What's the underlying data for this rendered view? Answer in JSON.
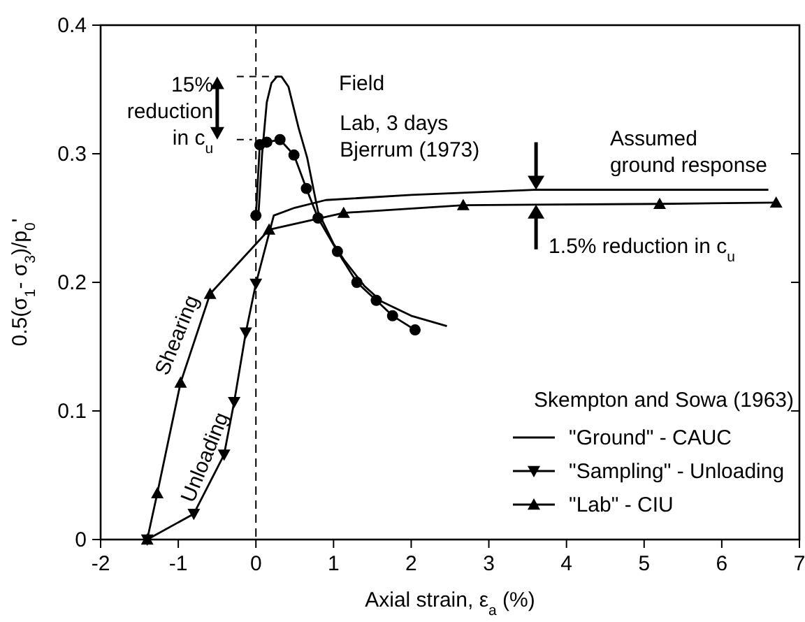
{
  "chart_data": {
    "type": "line",
    "xlabel": "Axial strain, ε$_{a}$ (%)",
    "ylabel": "0.5(σ$_{1}$- σ$_{3}$)/p$_{0}$'",
    "xlim": [
      -2,
      7
    ],
    "xticks": [
      -2,
      -1,
      0,
      1,
      2,
      3,
      4,
      5,
      6,
      7
    ],
    "ylim": [
      0,
      0.4
    ],
    "yticks": [
      0,
      0.1,
      0.2,
      0.3,
      0.4
    ],
    "grid": false,
    "legend": "bottom right",
    "legend_title": "Skempton and Sowa (1963)",
    "line_style": "solid",
    "series": [
      {
        "name": "\"Ground\" - CAUC",
        "color": "#000000",
        "marker": "none",
        "x": [
          0,
          0.23,
          0.5,
          0.9,
          2,
          3.6,
          6.6
        ],
        "values": [
          0.199,
          0.252,
          0.258,
          0.264,
          0.268,
          0.272,
          0.272
        ]
      },
      {
        "name": "\"Sampling\" - Unloading",
        "color": "#000000",
        "marker": "triangle-down",
        "x": [
          0,
          -0.13,
          -0.28,
          -0.41,
          -0.8,
          -1.4
        ],
        "values": [
          0.199,
          0.161,
          0.107,
          0.066,
          0.02,
          0
        ]
      },
      {
        "name": "\"Lab\" - CIU",
        "color": "#000000",
        "marker": "triangle",
        "x": [
          -1.4,
          -1.27,
          -0.97,
          -0.59,
          0.17,
          1.13,
          2.67,
          5.2,
          6.7
        ],
        "values": [
          0,
          0.036,
          0.122,
          0.191,
          0.241,
          0.254,
          0.26,
          0.261,
          0.262
        ]
      },
      {
        "color": "#000000",
        "marker": "none",
        "x": [
          0.03,
          0.08,
          0.14,
          0.2,
          0.27,
          0.33,
          0.42,
          0.55,
          0.66,
          0.8,
          1.0,
          1.14,
          1.4,
          1.62,
          2.0,
          2.46
        ],
        "values": [
          0.25,
          0.3,
          0.34,
          0.355,
          0.36,
          0.36,
          0.352,
          0.32,
          0.297,
          0.255,
          0.23,
          0.217,
          0.197,
          0.185,
          0.174,
          0.166
        ]
      },
      {
        "color": "#000000",
        "marker": "circle",
        "x": [
          0,
          0.05,
          0.14,
          0.31,
          0.49,
          0.65,
          0.8,
          1.05,
          1.3,
          1.55,
          1.76,
          2.05
        ],
        "values": [
          0.252,
          0.307,
          0.309,
          0.311,
          0.299,
          0.273,
          0.25,
          0.224,
          0.2,
          0.186,
          0.174,
          0.163
        ]
      }
    ],
    "ref_lines": [
      {
        "axis": "x",
        "value": 0,
        "line_style": "dashed"
      }
    ],
    "annotations": [
      "Field",
      "Lab, 3 days\nBjerrum (1973)",
      "Assumed\nground response",
      "1.5% reduction in c$_{u}$",
      {
        "text": "15%\nreduction\nin c$_{u}$",
        "x": 0.3,
        "y": 0.36
      },
      "Shearing",
      "Unloading"
    ]
  }
}
